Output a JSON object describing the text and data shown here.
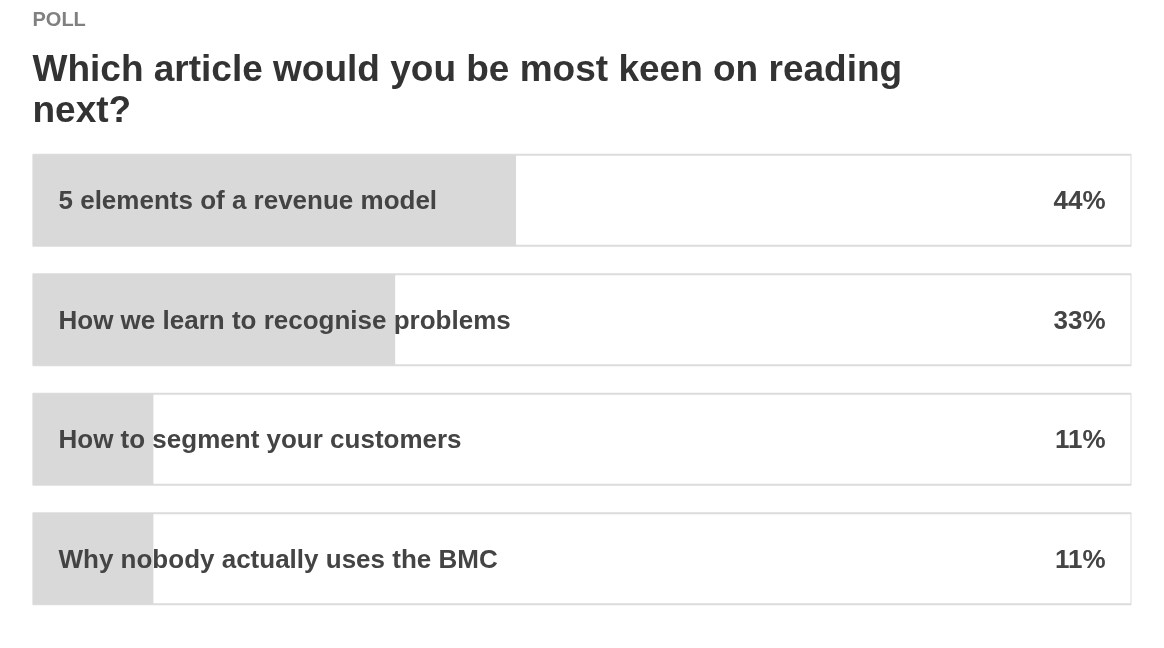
{
  "chart_data": {
    "type": "bar",
    "orientation": "horizontal",
    "subtitle": "POLL",
    "title": "Which article would you be most keen on reading next?",
    "categories": [
      "5 elements of a revenue model",
      "How we learn to recognise problems",
      "How to segment your customers",
      "Why nobody actually uses the BMC"
    ],
    "values": [
      44,
      33,
      11,
      11
    ],
    "value_labels": [
      "44%",
      "33%",
      "11%",
      "11%"
    ],
    "color": "#d9d9d9",
    "xlim": [
      0,
      100
    ],
    "tick_labels": false,
    "grid": false
  }
}
